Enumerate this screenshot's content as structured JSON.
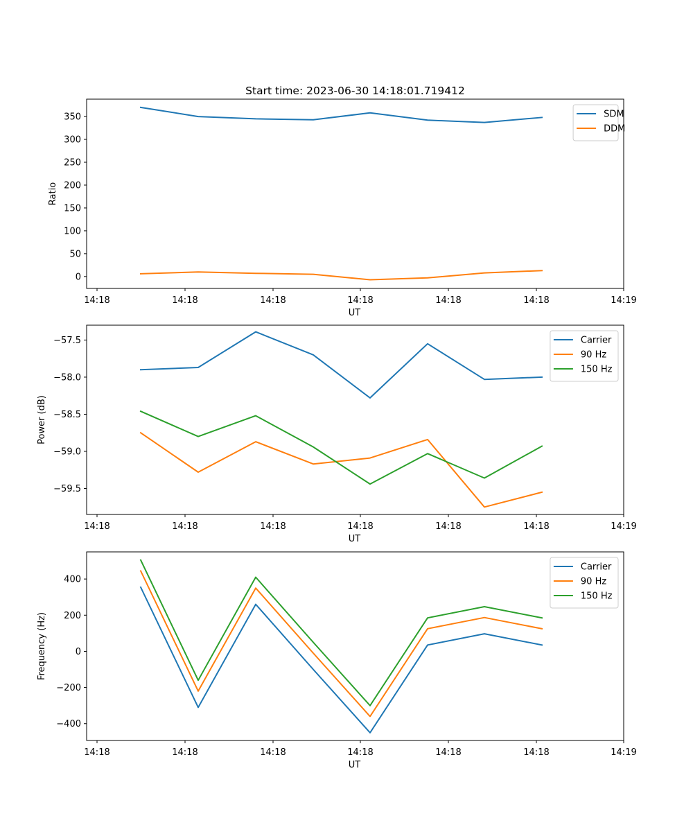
{
  "figure": {
    "title": "Start time: 2023-06-30 14:18:01.719412"
  },
  "chart_data": [
    {
      "type": "line",
      "ylabel": "Ratio",
      "xlabel": "UT",
      "x_tick_labels": [
        "14:18",
        "14:18",
        "14:18",
        "14:18",
        "14:18",
        "14:18",
        "14:19"
      ],
      "ylim": [
        -26,
        388
      ],
      "yticks": [
        0,
        50,
        100,
        150,
        200,
        250,
        300,
        350
      ],
      "legend_position": "upper right",
      "series": [
        {
          "name": "SDM",
          "color": "#1f77b4",
          "values": [
            370,
            350,
            345,
            343,
            358,
            342,
            337,
            348
          ]
        },
        {
          "name": "DDM",
          "color": "#ff7f0e",
          "values": [
            6,
            10,
            7,
            5,
            -7,
            -3,
            8,
            13
          ]
        }
      ]
    },
    {
      "type": "line",
      "ylabel": "Power (dB)",
      "xlabel": "UT",
      "x_tick_labels": [
        "14:18",
        "14:18",
        "14:18",
        "14:18",
        "14:18",
        "14:18",
        "14:19"
      ],
      "ylim": [
        -59.85,
        -57.3
      ],
      "yticks": [
        -57.5,
        -58.0,
        -58.5,
        -59.0,
        -59.5
      ],
      "legend_position": "upper right",
      "series": [
        {
          "name": "Carrier",
          "color": "#1f77b4",
          "values": [
            -57.9,
            -57.87,
            -57.39,
            -57.7,
            -58.28,
            -57.55,
            -58.03,
            -58.0
          ]
        },
        {
          "name": "90 Hz",
          "color": "#ff7f0e",
          "values": [
            -58.75,
            -59.28,
            -58.87,
            -59.17,
            -59.09,
            -58.84,
            -59.75,
            -59.55
          ]
        },
        {
          "name": "150 Hz",
          "color": "#2ca02c",
          "values": [
            -58.46,
            -58.8,
            -58.52,
            -58.94,
            -59.44,
            -59.03,
            -59.36,
            -58.93
          ]
        }
      ]
    },
    {
      "type": "line",
      "ylabel": "Frequency (Hz)",
      "xlabel": "UT",
      "x_tick_labels": [
        "14:18",
        "14:18",
        "14:18",
        "14:18",
        "14:18",
        "14:18",
        "14:19"
      ],
      "ylim": [
        -493,
        550
      ],
      "yticks": [
        400,
        200,
        0,
        -200,
        -400
      ],
      "legend_position": "upper right",
      "series": [
        {
          "name": "Carrier",
          "color": "#1f77b4",
          "values": [
            355,
            -310,
            260,
            -100,
            -450,
            35,
            97,
            35
          ]
        },
        {
          "name": "90 Hz",
          "color": "#ff7f0e",
          "values": [
            445,
            -220,
            350,
            -10,
            -360,
            125,
            187,
            125
          ]
        },
        {
          "name": "150 Hz",
          "color": "#2ca02c",
          "values": [
            505,
            -160,
            410,
            50,
            -300,
            185,
            247,
            185
          ]
        }
      ]
    }
  ]
}
